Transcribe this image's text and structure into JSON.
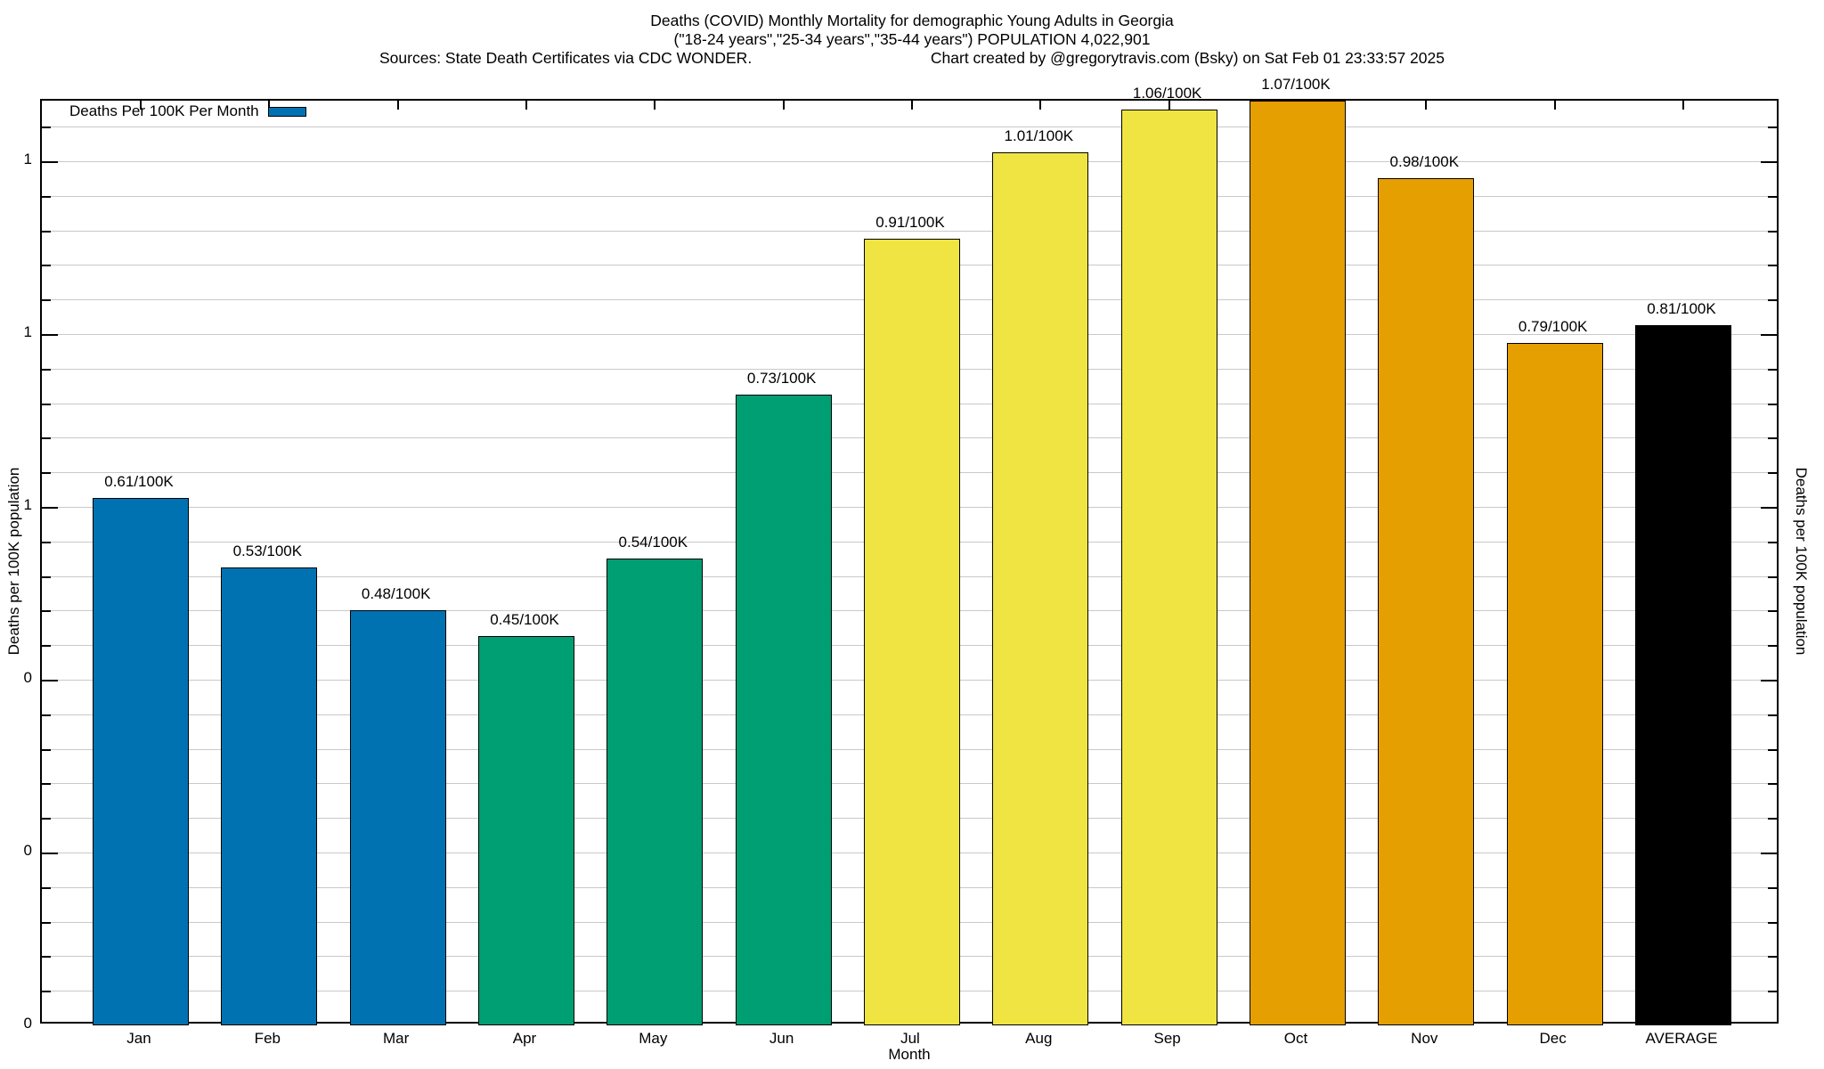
{
  "header": {
    "title_line1": "Deaths (COVID) Monthly Mortality for demographic Young Adults in Georgia",
    "title_line2": "(\"18-24 years\",\"25-34 years\",\"35-44 years\") POPULATION 4,022,901",
    "source_left": "Sources: State Death Certificates via CDC WONDER.",
    "source_right": "Chart created by @gregorytravis.com (Bsky) on Sat Feb 01 23:33:57 2025"
  },
  "legend": {
    "label": "Deaths Per 100K Per Month",
    "swatch_color": "#0072B2"
  },
  "axes": {
    "y_left_label": "Deaths per 100K population",
    "y_right_label": "Deaths per 100K population",
    "x_label": "Month",
    "y_major_ticks": [
      {
        "value": 1.0,
        "label": "1"
      },
      {
        "value": 0.8,
        "label": "1"
      },
      {
        "value": 0.6,
        "label": "1"
      },
      {
        "value": 0.4,
        "label": "0"
      },
      {
        "value": 0.2,
        "label": "0"
      },
      {
        "value": 0.0,
        "label": "0"
      }
    ],
    "y_minor_step": 0.04,
    "grid": "on"
  },
  "colors": {
    "blue": "#0072B2",
    "green": "#009E73",
    "yellow": "#F0E442",
    "orange": "#E69F00",
    "black": "#000000",
    "grid": "#c9c9c9"
  },
  "chart_data": {
    "type": "bar",
    "title": "Deaths (COVID) Monthly Mortality for demographic Young Adults in Georgia",
    "subtitle": "(\"18-24 years\",\"25-34 years\",\"35-44 years\") POPULATION 4,022,901",
    "xlabel": "Month",
    "ylabel": "Deaths per 100K population",
    "ylim": [
      0,
      1.07
    ],
    "grid": "on",
    "legend_position": "top-left",
    "legend_label": "Deaths Per 100K Per Month",
    "categories": [
      "Jan",
      "Feb",
      "Mar",
      "Apr",
      "May",
      "Jun",
      "Jul",
      "Aug",
      "Sep",
      "Oct",
      "Nov",
      "Dec",
      "AVERAGE"
    ],
    "values": [
      0.61,
      0.53,
      0.48,
      0.45,
      0.54,
      0.73,
      0.91,
      1.01,
      1.06,
      1.07,
      0.98,
      0.79,
      0.81
    ],
    "bar_labels": [
      "0.61/100K",
      "0.53/100K",
      "0.48/100K",
      "0.45/100K",
      "0.54/100K",
      "0.73/100K",
      "0.91/100K",
      "1.01/100K",
      "1.06/100K",
      "1.07/100K",
      "0.98/100K",
      "0.79/100K",
      "0.81/100K"
    ],
    "bar_colors": [
      "#0072B2",
      "#0072B2",
      "#0072B2",
      "#009E73",
      "#009E73",
      "#009E73",
      "#F0E442",
      "#F0E442",
      "#F0E442",
      "#E69F00",
      "#E69F00",
      "#E69F00",
      "#000000"
    ]
  }
}
